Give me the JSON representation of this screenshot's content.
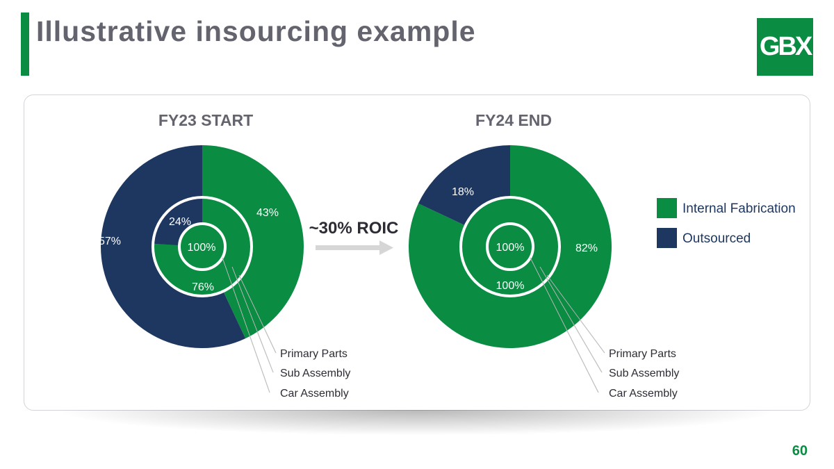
{
  "slide": {
    "title": "Illustrative insourcing example",
    "logo_text": "GBX",
    "page_number": "60",
    "arrow_label": "~30% ROIC"
  },
  "colors": {
    "green": "#0a8c43",
    "navy": "#1e3760",
    "title_gray": "#64646e",
    "arrow_gray": "#d6d6d6"
  },
  "chart_data": [
    {
      "type": "pie",
      "subtype": "concentric-donut",
      "title": "FY23 START",
      "rings": [
        {
          "name": "Primary Parts",
          "slices": [
            {
              "label": "Internal Fabrication",
              "value": 43,
              "text": "43%"
            },
            {
              "label": "Outsourced",
              "value": 57,
              "text": "57%"
            }
          ]
        },
        {
          "name": "Sub Assembly",
          "slices": [
            {
              "label": "Internal Fabrication",
              "value": 76,
              "text": "76%"
            },
            {
              "label": "Outsourced",
              "value": 24,
              "text": "24%"
            }
          ]
        },
        {
          "name": "Car Assembly",
          "slices": [
            {
              "label": "Internal Fabrication",
              "value": 100,
              "text": "100%"
            }
          ]
        }
      ],
      "callouts": [
        "Primary Parts",
        "Sub Assembly",
        "Car Assembly"
      ]
    },
    {
      "type": "pie",
      "subtype": "concentric-donut",
      "title": "FY24 END",
      "rings": [
        {
          "name": "Primary Parts",
          "slices": [
            {
              "label": "Internal Fabrication",
              "value": 82,
              "text": "82%"
            },
            {
              "label": "Outsourced",
              "value": 18,
              "text": "18%"
            }
          ]
        },
        {
          "name": "Sub Assembly",
          "slices": [
            {
              "label": "Internal Fabrication",
              "value": 100,
              "text": "100%"
            }
          ]
        },
        {
          "name": "Car Assembly",
          "slices": [
            {
              "label": "Internal Fabrication",
              "value": 100,
              "text": "100%"
            }
          ]
        }
      ],
      "callouts": [
        "Primary Parts",
        "Sub Assembly",
        "Car Assembly"
      ]
    }
  ],
  "legend": {
    "placement": "right",
    "items": [
      {
        "label": "Internal Fabrication",
        "color": "#0a8c43"
      },
      {
        "label": "Outsourced",
        "color": "#1e3760"
      }
    ]
  }
}
